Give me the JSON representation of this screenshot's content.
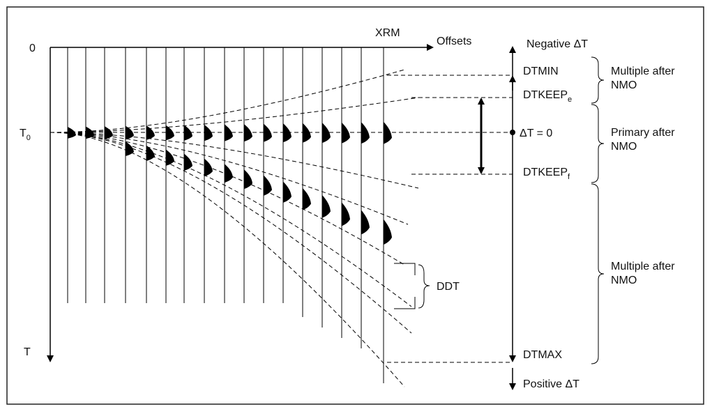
{
  "axis": {
    "origin": "0",
    "time": {
      "main": "T",
      "sub": "0"
    },
    "time_axis": "T",
    "offset_axis": "Offsets",
    "xrm": "XRM"
  },
  "scale": {
    "negative": "Negative ΔT",
    "dtmin": "DTMIN",
    "dtkeep_e": {
      "main": "DTKEEP",
      "sub": "e"
    },
    "zero": "ΔT = 0",
    "dtkeep_f": {
      "main": "DTKEEP",
      "sub": "f"
    },
    "dtmax": "DTMAX",
    "positive": "Positive ΔT"
  },
  "ddt": "DDT",
  "zones": [
    {
      "line1": "Multiple after",
      "line2": "NMO"
    },
    {
      "line1": "Primary after",
      "line2": "NMO"
    },
    {
      "line1": "Multiple after",
      "line2": "NMO"
    }
  ]
}
